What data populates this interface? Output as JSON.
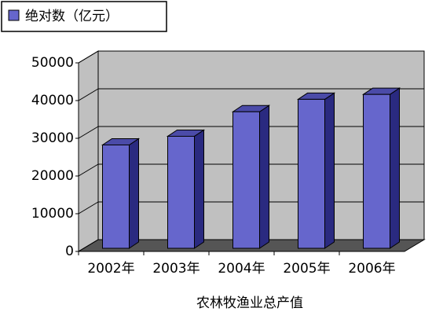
{
  "chart_data": {
    "type": "bar3d",
    "x_label": "农林牧渔业总产值",
    "categories": [
      "2002年",
      "2003年",
      "2004年",
      "2005年",
      "2006年"
    ],
    "series": [
      {
        "name": "绝对数（亿元）",
        "color": "#6666cc",
        "values": [
          27400,
          29700,
          36200,
          39500,
          40800
        ]
      }
    ],
    "ylim": [
      0,
      50000
    ],
    "yticks": [
      0,
      10000,
      20000,
      30000,
      40000,
      50000
    ],
    "grid": true
  }
}
